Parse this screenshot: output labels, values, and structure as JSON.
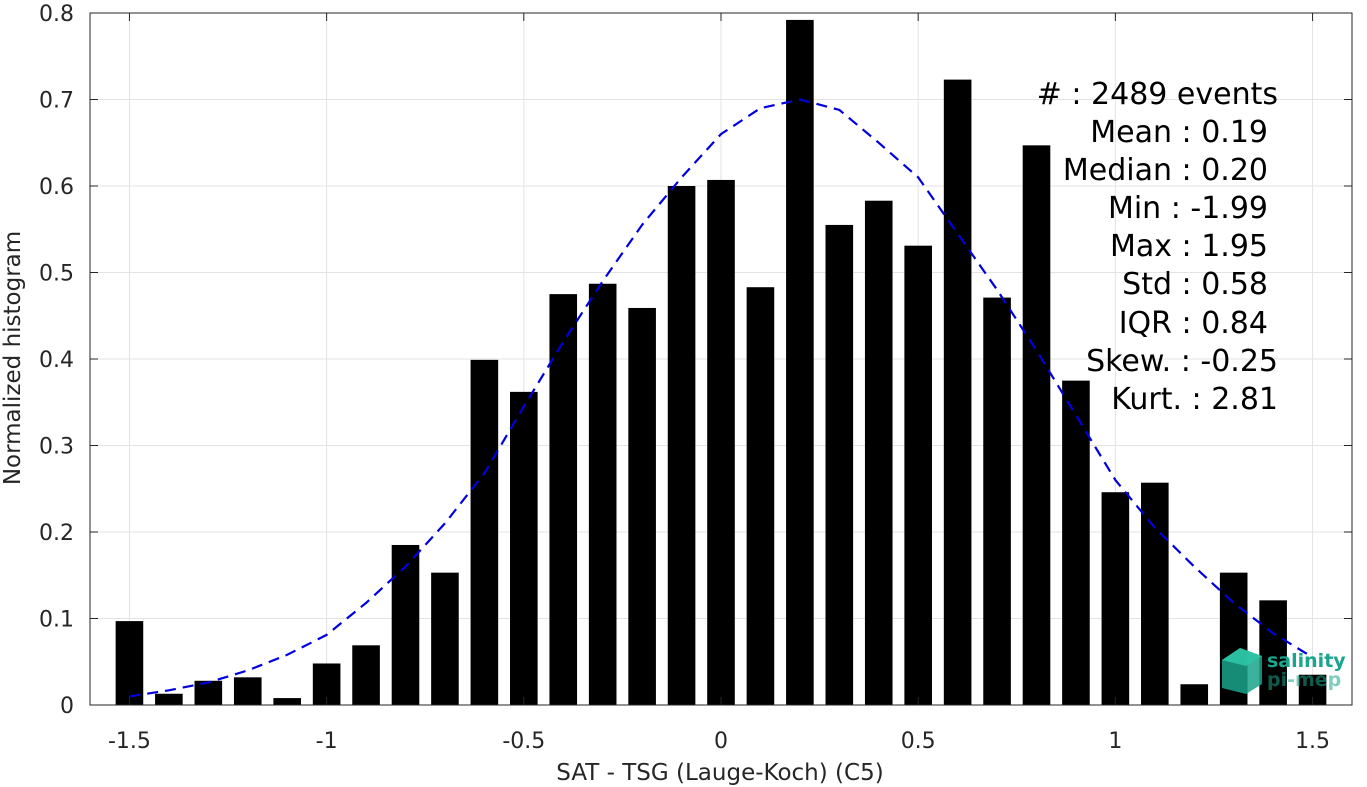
{
  "chart_data": {
    "type": "bar",
    "xlabel": "SAT - TSG (Lauge-Koch) (C5)",
    "ylabel": "Normalized histogram",
    "xlim": [
      -1.6,
      1.6
    ],
    "ylim": [
      0,
      0.8
    ],
    "xticks": [
      -1.5,
      -1,
      -0.5,
      0,
      0.5,
      1,
      1.5
    ],
    "xtick_labels": [
      "-1.5",
      "-1",
      "-0.5",
      "0",
      "0.5",
      "1",
      "1.5"
    ],
    "yticks": [
      0,
      0.1,
      0.2,
      0.3,
      0.4,
      0.5,
      0.6,
      0.7,
      0.8
    ],
    "ytick_labels": [
      "0",
      "0.1",
      "0.2",
      "0.3",
      "0.4",
      "0.5",
      "0.6",
      "0.7",
      "0.8"
    ],
    "grid": true,
    "bar_width": 0.07,
    "bar_color": "#000000",
    "x": [
      -1.5,
      -1.4,
      -1.3,
      -1.2,
      -1.1,
      -1.0,
      -0.9,
      -0.8,
      -0.7,
      -0.6,
      -0.5,
      -0.4,
      -0.3,
      -0.2,
      -0.1,
      0.0,
      0.1,
      0.2,
      0.3,
      0.4,
      0.5,
      0.6,
      0.7,
      0.8,
      0.9,
      1.0,
      1.1,
      1.2,
      1.3,
      1.4,
      1.5
    ],
    "values": [
      0.097,
      0.013,
      0.028,
      0.032,
      0.008,
      0.048,
      0.069,
      0.185,
      0.153,
      0.399,
      0.362,
      0.475,
      0.487,
      0.459,
      0.6,
      0.607,
      0.483,
      0.792,
      0.555,
      0.583,
      0.531,
      0.723,
      0.471,
      0.647,
      0.375,
      0.246,
      0.257,
      0.024,
      0.153,
      0.121,
      0.035
    ],
    "fit_curve": {
      "style": "dashed",
      "color": "#0000dd",
      "x": [
        -1.5,
        -1.4,
        -1.3,
        -1.2,
        -1.1,
        -1.0,
        -0.9,
        -0.8,
        -0.7,
        -0.6,
        -0.5,
        -0.4,
        -0.3,
        -0.2,
        -0.1,
        0.0,
        0.1,
        0.2,
        0.3,
        0.4,
        0.5,
        0.6,
        0.7,
        0.8,
        0.9,
        1.0,
        1.1,
        1.2,
        1.3,
        1.4,
        1.5
      ],
      "y": [
        0.01,
        0.017,
        0.026,
        0.04,
        0.058,
        0.081,
        0.118,
        0.16,
        0.21,
        0.268,
        0.345,
        0.42,
        0.49,
        0.555,
        0.61,
        0.66,
        0.69,
        0.7,
        0.688,
        0.65,
        0.61,
        0.545,
        0.48,
        0.41,
        0.335,
        0.26,
        0.205,
        0.16,
        0.118,
        0.083,
        0.055
      ]
    },
    "annotations": [
      "#  : 2489 events",
      "Mean : 0.19",
      "Median : 0.20",
      "Min : -1.99",
      "Max : 1.95",
      "Std : 0.58",
      "IQR : 0.84",
      "Skew. : -0.25",
      "Kurt. : 2.81"
    ]
  },
  "logo": {
    "line1": "salinity",
    "line2": "pi-mep"
  }
}
